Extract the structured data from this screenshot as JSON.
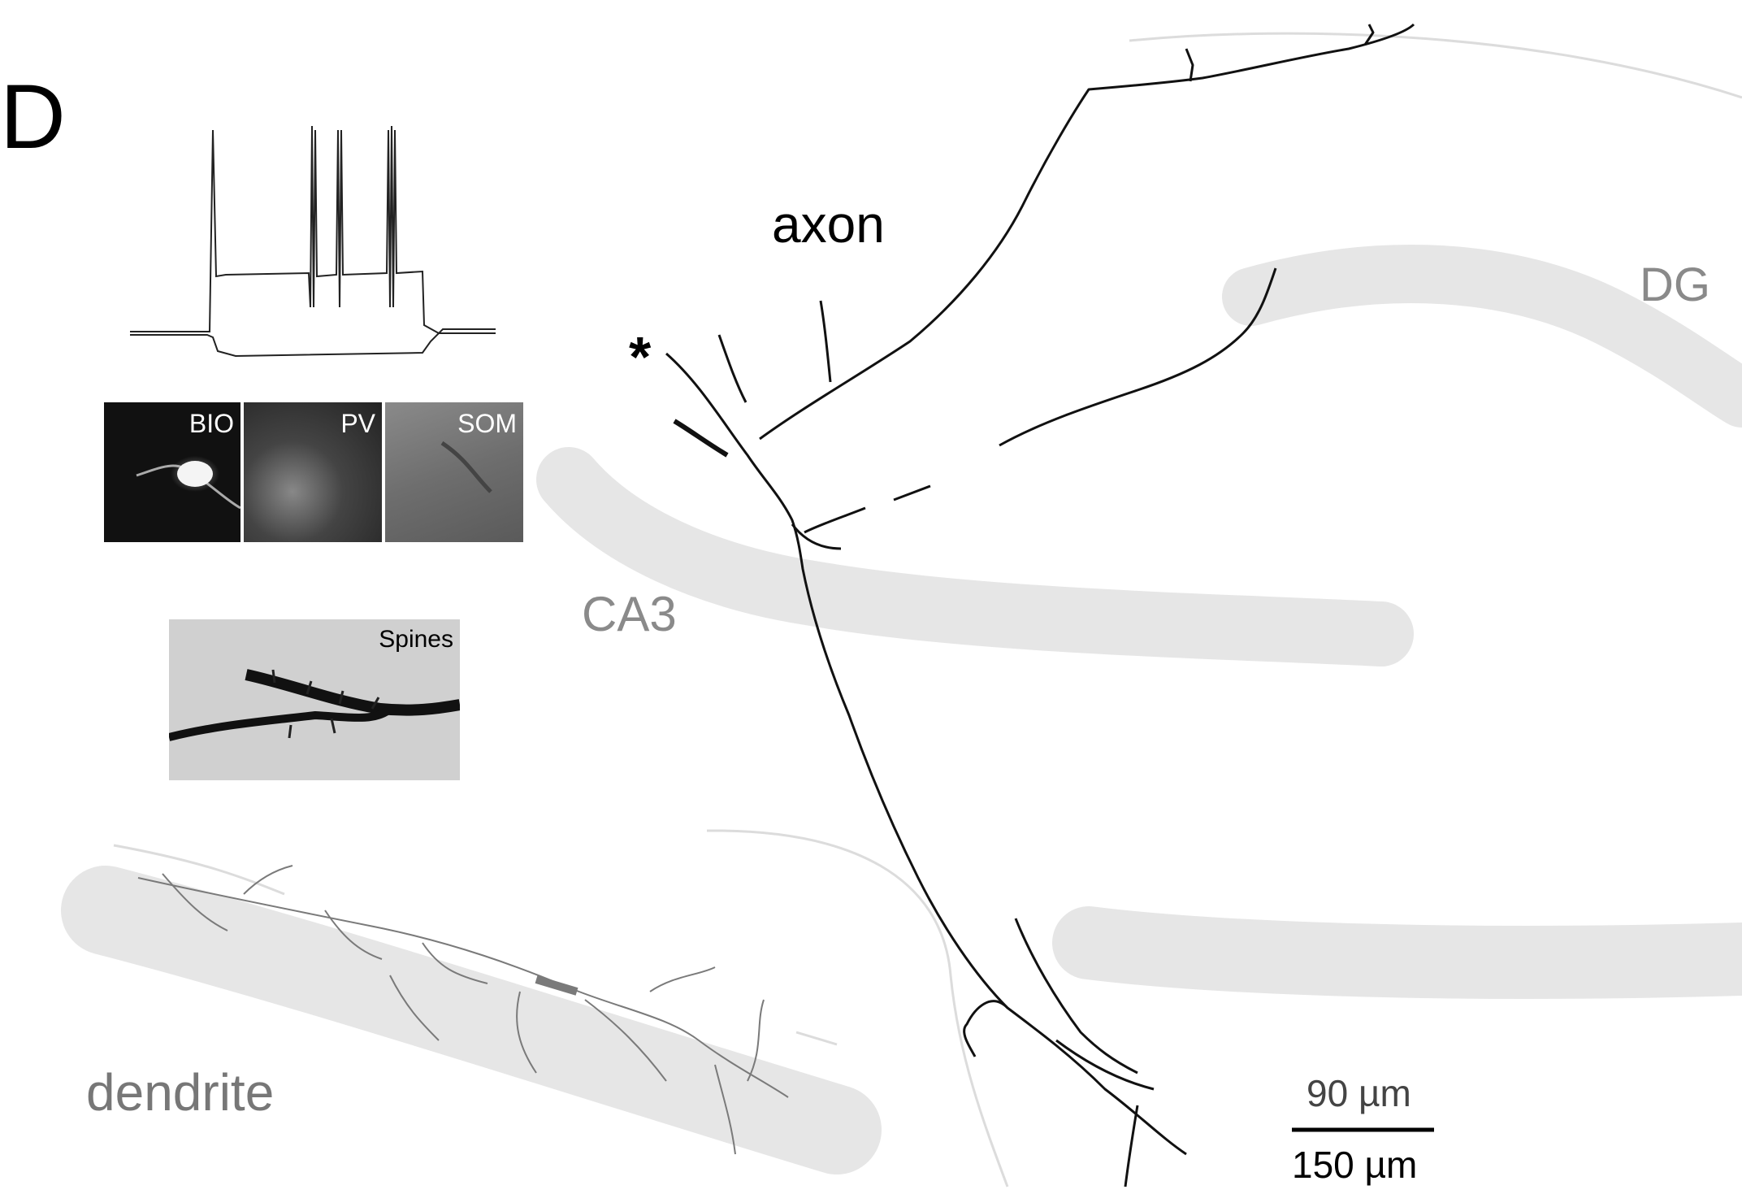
{
  "figure": {
    "panel_letter": "D",
    "labels": {
      "axon": "axon",
      "dg": "DG",
      "ca3": "CA3",
      "dendrite": "dendrite",
      "soma_marker": "*"
    },
    "scale_bar": {
      "top_label": "90 µm",
      "bottom_label": "150 µm"
    },
    "insets": {
      "bio": "BIO",
      "pv": "PV",
      "som": "SOM",
      "spines": "Spines"
    },
    "colors": {
      "layer_band": "#e6e6e6",
      "axon_trace": "#111111",
      "dendrite_trace": "#7a7a7a",
      "outline": "#dcdcdc",
      "label_gray": "#8a8a8a"
    }
  }
}
